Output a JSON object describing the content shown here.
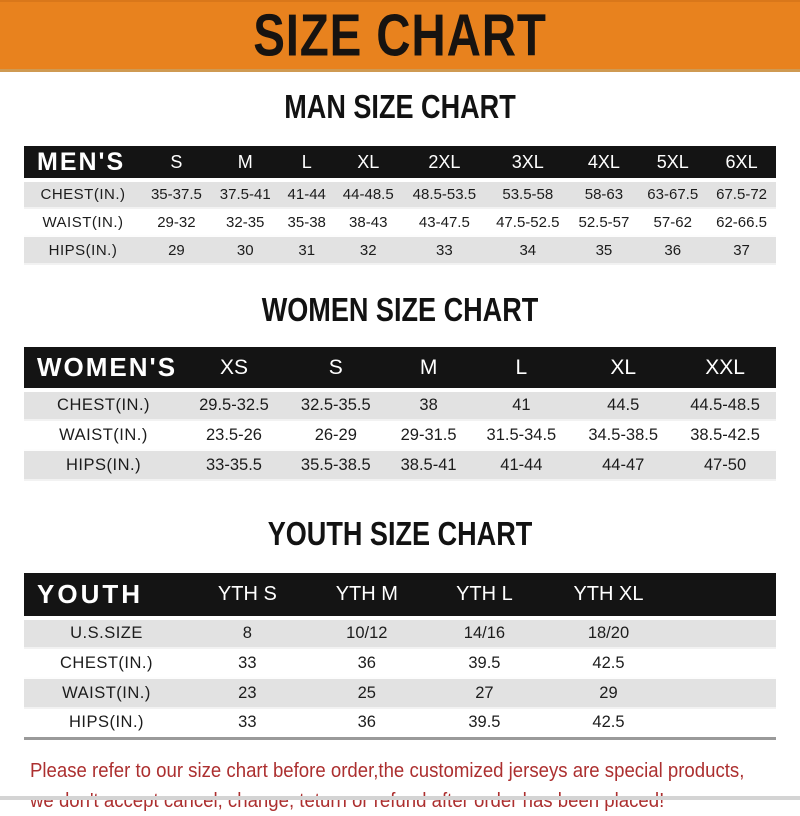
{
  "banner": {
    "title": "SIZE CHART",
    "bg_color": "#E8821E",
    "text_color": "#171310"
  },
  "sections": [
    {
      "heading": "MAN SIZE CHART",
      "table": {
        "group_label": "MEN'S",
        "columns": [
          "S",
          "M",
          "L",
          "XL",
          "2XL",
          "3XL",
          "4XL",
          "5XL",
          "6XL"
        ],
        "spacer_column": false,
        "rows": [
          {
            "label": "CHEST(IN.)",
            "values": [
              "35-37.5",
              "37.5-41",
              "41-44",
              "44-48.5",
              "48.5-53.5",
              "53.5-58",
              "58-63",
              "63-67.5",
              "67.5-72"
            ]
          },
          {
            "label": "WAIST(IN.)",
            "values": [
              "29-32",
              "32-35",
              "35-38",
              "38-43",
              "43-47.5",
              "47.5-52.5",
              "52.5-57",
              "57-62",
              "62-66.5"
            ]
          },
          {
            "label": "HIPS(IN.)",
            "values": [
              "29",
              "30",
              "31",
              "32",
              "33",
              "34",
              "35",
              "36",
              "37"
            ]
          }
        ]
      }
    },
    {
      "heading": "WOMEN SIZE CHART",
      "table": {
        "group_label": "WOMEN'S",
        "columns": [
          "XS",
          "S",
          "M",
          "L",
          "XL",
          "XXL"
        ],
        "spacer_column": false,
        "rows": [
          {
            "label": "CHEST(IN.)",
            "values": [
              "29.5-32.5",
              "32.5-35.5",
              "38",
              "41",
              "44.5",
              "44.5-48.5"
            ]
          },
          {
            "label": "WAIST(IN.)",
            "values": [
              "23.5-26",
              "26-29",
              "29-31.5",
              "31.5-34.5",
              "34.5-38.5",
              "38.5-42.5"
            ]
          },
          {
            "label": "HIPS(IN.)",
            "values": [
              "33-35.5",
              "35.5-38.5",
              "38.5-41",
              "41-44",
              "44-47",
              "47-50"
            ]
          }
        ]
      }
    },
    {
      "heading": "YOUTH SIZE CHART",
      "table": {
        "group_label": "YOUTH",
        "columns": [
          "YTH S",
          "YTH M",
          "YTH L",
          "YTH XL"
        ],
        "spacer_column": true,
        "rows": [
          {
            "label": "U.S.SIZE",
            "values": [
              "8",
              "10/12",
              "14/16",
              "18/20"
            ]
          },
          {
            "label": "CHEST(IN.)",
            "values": [
              "33",
              "36",
              "39.5",
              "42.5"
            ]
          },
          {
            "label": "WAIST(IN.)",
            "values": [
              "23",
              "25",
              "27",
              "29"
            ]
          },
          {
            "label": "HIPS(IN.)",
            "values": [
              "33",
              "36",
              "39.5",
              "42.5"
            ]
          }
        ]
      }
    }
  ],
  "disclaimer": {
    "line1": "Please refer to our size chart before order,the customized jerseys are special products,",
    "line2": "we don't accept cancel, change, teturn or refund after order has been placed!",
    "text_color": "#AC2F2F"
  }
}
